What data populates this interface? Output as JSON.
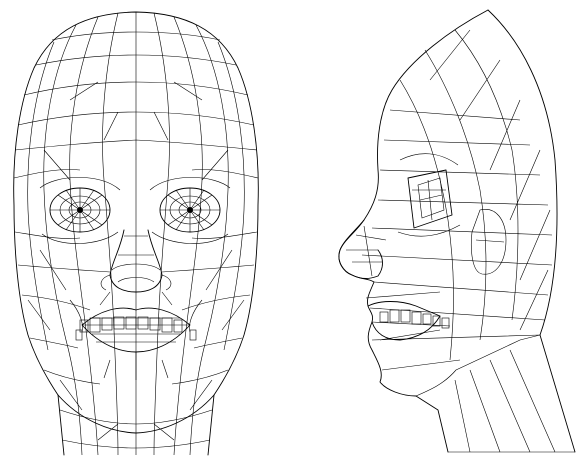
{
  "figure": {
    "views": [
      {
        "id": "front",
        "description_hidden": true
      },
      {
        "id": "profile",
        "description_hidden": true
      }
    ],
    "colors": {
      "background": "#ffffff",
      "line": "#000000"
    }
  }
}
